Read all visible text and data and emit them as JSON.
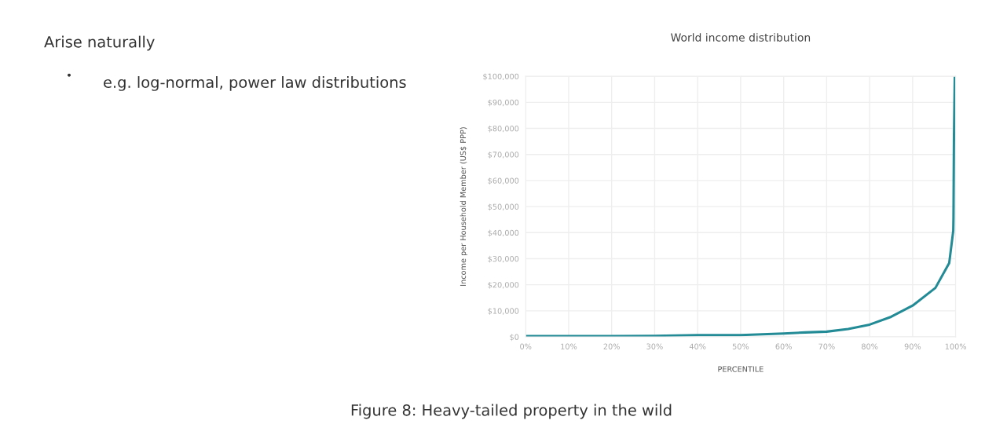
{
  "chart_data": {
    "type": "line",
    "title": "World income distribution",
    "xlabel": "PERCENTILE",
    "ylabel": "Income per Household Member (US$ PPP)",
    "annotations": [
      "Arise naturally",
      "•",
      "e.g. log-normal, power law distributions",
      "Figure 8: Heavy-tailed property in the wild"
    ],
    "x": [
      0,
      10,
      20,
      30,
      40,
      50,
      60,
      65,
      70,
      75,
      80,
      85,
      90,
      95.3,
      98.5,
      99.45,
      99.5,
      99.6,
      99.8
    ],
    "series": [
      {
        "color": "#238b96",
        "values": [
          300,
          300,
          300,
          400,
          700,
          700,
          1300,
          1700,
          2000,
          3000,
          4700,
          7700,
          12000,
          18800,
          28300,
          40800,
          45800,
          74900,
          100000
        ]
      }
    ],
    "xlim": [
      0,
      100
    ],
    "ylim": [
      0,
      100000
    ],
    "xticks": [
      {
        "value": 0,
        "label": "0%"
      },
      {
        "value": 10,
        "label": "10%"
      },
      {
        "value": 20,
        "label": "20%"
      },
      {
        "value": 30,
        "label": "30%"
      },
      {
        "value": 40,
        "label": "40%"
      },
      {
        "value": 50,
        "label": "50%"
      },
      {
        "value": 60,
        "label": "60%"
      },
      {
        "value": 70,
        "label": "70%"
      },
      {
        "value": 80,
        "label": "80%"
      },
      {
        "value": 90,
        "label": "90%"
      },
      {
        "value": 100,
        "label": "100%"
      }
    ],
    "yticks": [
      {
        "value": 0,
        "label": "$0"
      },
      {
        "value": 10000,
        "label": "$10,000"
      },
      {
        "value": 20000,
        "label": "$20,000"
      },
      {
        "value": 30000,
        "label": "$30,000"
      },
      {
        "value": 40000,
        "label": "$40,000"
      },
      {
        "value": 50000,
        "label": "$50,000"
      },
      {
        "value": 60000,
        "label": "$60,000"
      },
      {
        "value": 70000,
        "label": "$70,000"
      },
      {
        "value": 80000,
        "label": "$80,000"
      },
      {
        "value": 90000,
        "label": "$90,000"
      },
      {
        "value": 100000,
        "label": "$100,000"
      }
    ],
    "grid": true,
    "legend": false
  }
}
